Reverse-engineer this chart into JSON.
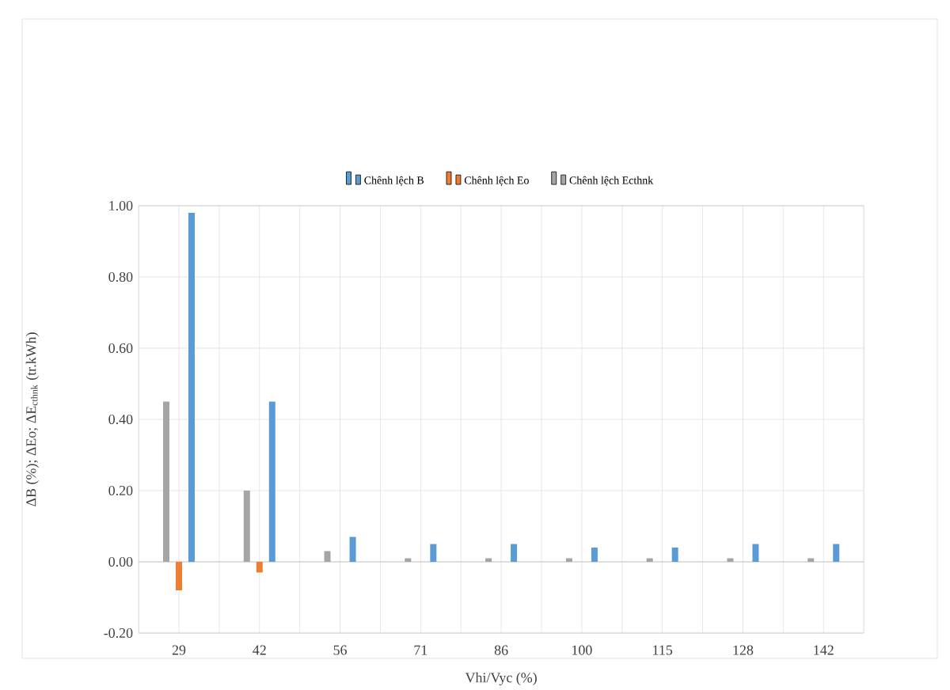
{
  "chart_data": {
    "type": "bar",
    "xlabel": "Vhi/Vyc (%)",
    "ylabel": "ΔB (%); ΔEo; ΔE$_{cthnk}$ (tr.kWh)",
    "categories": [
      "29",
      "42",
      "56",
      "71",
      "86",
      "100",
      "115",
      "128",
      "142"
    ],
    "series": [
      {
        "name": "Chênh lệch B",
        "color": "#5b9bd5",
        "values": [
          0.98,
          0.45,
          0.07,
          0.05,
          0.05,
          0.04,
          0.04,
          0.05,
          0.05
        ]
      },
      {
        "name": "Chênh lệch Eo",
        "color": "#ed7d31",
        "values": [
          -0.08,
          -0.03,
          0,
          0,
          0,
          0,
          0,
          0,
          0
        ]
      },
      {
        "name": "Chênh lệch Ecthnk",
        "color": "#a5a5a5",
        "values": [
          0.45,
          0.2,
          0.03,
          0.01,
          0.01,
          0.01,
          0.01,
          0.01,
          0.01
        ]
      }
    ],
    "ylim": [
      -0.2,
      1.0
    ],
    "yticks": [
      {
        "value": -0.2,
        "label": "-0.20"
      },
      {
        "value": 0,
        "label": "0.00"
      },
      {
        "value": 0.2,
        "label": "0.20"
      },
      {
        "value": 0.4,
        "label": "0.40"
      },
      {
        "value": 0.6,
        "label": "0.60"
      },
      {
        "value": 0.8,
        "label": "0.80"
      },
      {
        "value": 1.0,
        "label": "1.00"
      }
    ],
    "grid": true,
    "legend": "top"
  }
}
